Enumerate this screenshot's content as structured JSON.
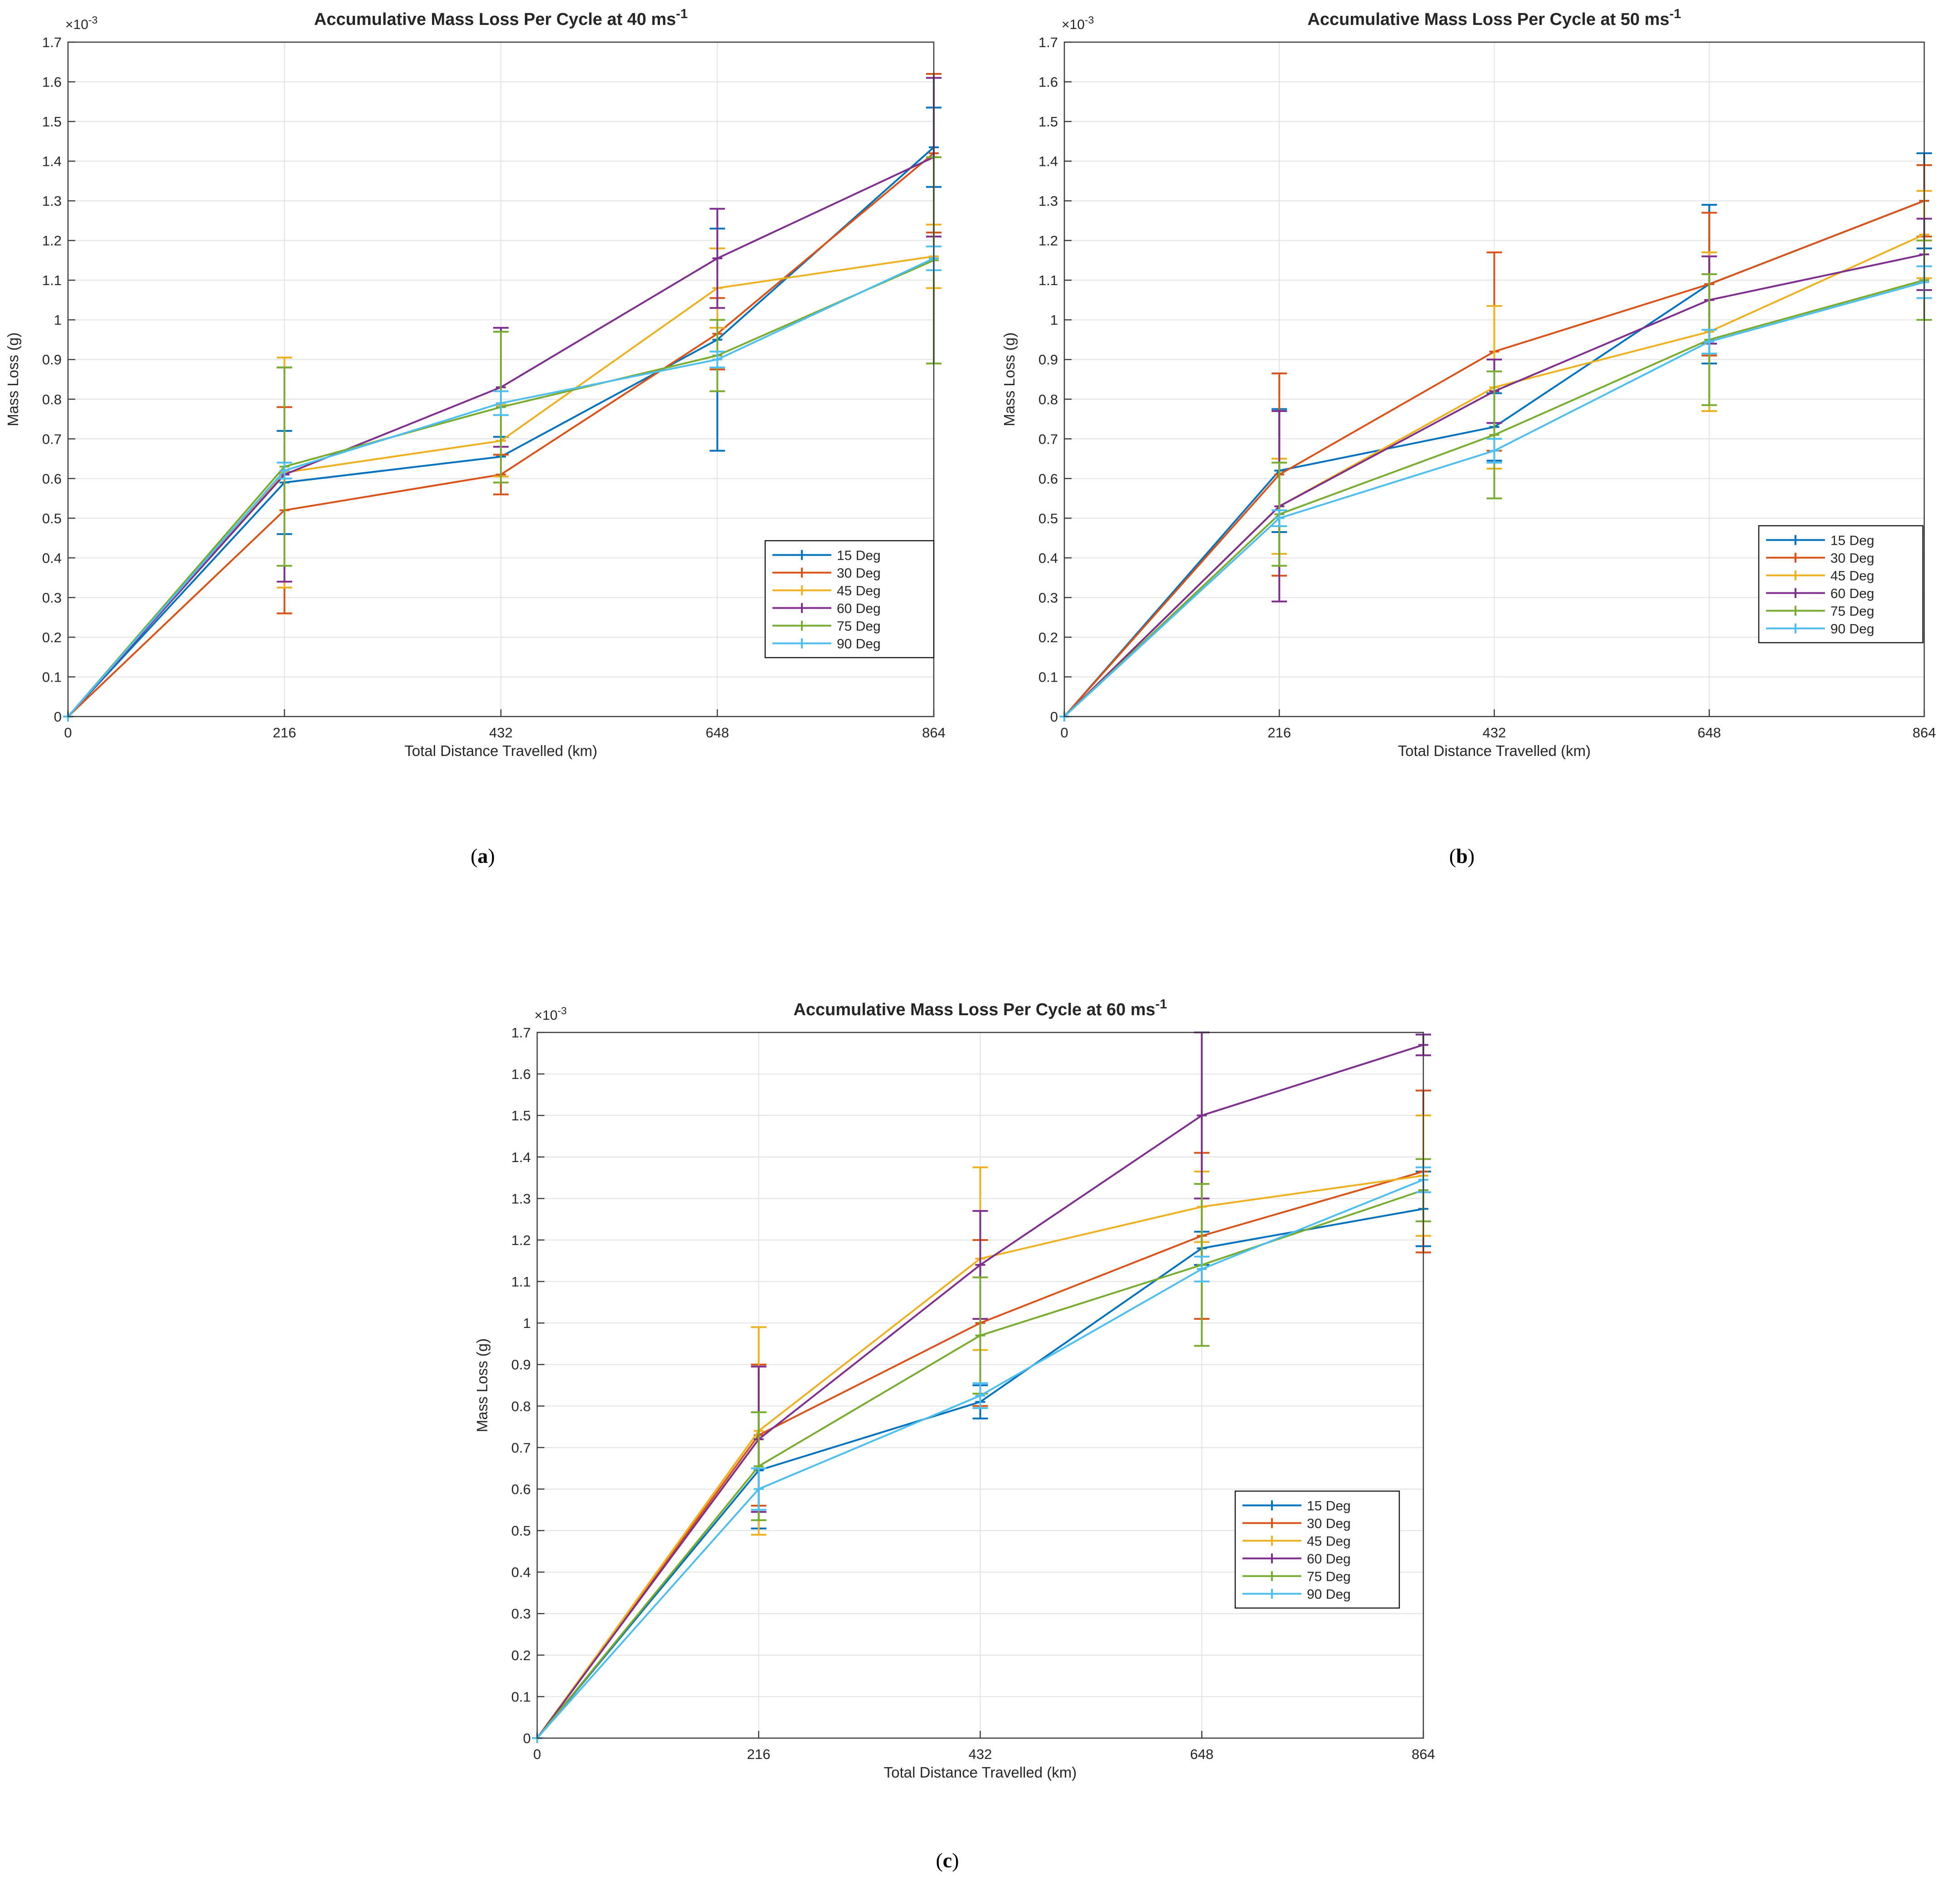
{
  "page": {
    "background": "#ffffff"
  },
  "captions": [
    {
      "open": "(",
      "letter": "a",
      "close": ")"
    },
    {
      "open": "(",
      "letter": "b",
      "close": ")"
    },
    {
      "open": "(",
      "letter": "c",
      "close": ")"
    }
  ],
  "colors": {
    "deg15": "#0072BD",
    "deg30": "#D95319",
    "deg45": "#EDB120",
    "deg60": "#7E2F8E",
    "deg75": "#77AC30",
    "deg90": "#4DBEEE",
    "grid": "#E2E2E2",
    "axis": "#3A3A3A",
    "text": "#262626"
  },
  "chart_data": [
    {
      "type": "line",
      "id": "chart-40ms",
      "title": "Accumulative Mass Loss Per Cycle at 40 ms",
      "title_superscript": "-1",
      "xlabel": "Total Distance Travelled (km)",
      "ylabel": "Mass Loss (g)",
      "y_scale_label": "×10",
      "y_scale_superscript": "-3",
      "unit_note": "y values in units of 1e-3 g",
      "x": [
        0,
        216,
        432,
        648,
        864
      ],
      "x_tick_labels": [
        "0",
        "216",
        "432",
        "648",
        "864"
      ],
      "y_tick_labels": [
        "0",
        "0.1",
        "0.2",
        "0.3",
        "0.4",
        "0.5",
        "0.6",
        "0.7",
        "0.8",
        "0.9",
        "1",
        "1.1",
        "1.2",
        "1.3",
        "1.4",
        "1.5",
        "1.6",
        "1.7"
      ],
      "ylim": [
        0,
        1.7
      ],
      "grid": true,
      "legend_position": "inset lower right",
      "series": [
        {
          "name": "15 Deg",
          "color": "#0072BD",
          "values": [
            0,
            0.59,
            0.655,
            0.95,
            1.435
          ],
          "errors": [
            0,
            0.13,
            0.05,
            0.28,
            0.1
          ]
        },
        {
          "name": "30 Deg",
          "color": "#D95319",
          "values": [
            0,
            0.52,
            0.61,
            0.965,
            1.42
          ],
          "errors": [
            0,
            0.26,
            0.05,
            0.09,
            0.2
          ]
        },
        {
          "name": "45 Deg",
          "color": "#EDB120",
          "values": [
            0,
            0.615,
            0.695,
            1.08,
            1.16
          ],
          "errors": [
            0,
            0.29,
            0.09,
            0.1,
            0.08
          ]
        },
        {
          "name": "60 Deg",
          "color": "#7E2F8E",
          "values": [
            0,
            0.61,
            0.83,
            1.155,
            1.41
          ],
          "errors": [
            0,
            0.27,
            0.15,
            0.125,
            0.2
          ]
        },
        {
          "name": "75 Deg",
          "color": "#77AC30",
          "values": [
            0,
            0.63,
            0.78,
            0.91,
            1.15
          ],
          "errors": [
            0,
            0.25,
            0.19,
            0.09,
            0.26
          ]
        },
        {
          "name": "90 Deg",
          "color": "#4DBEEE",
          "values": [
            0,
            0.62,
            0.79,
            0.9,
            1.155
          ],
          "errors": [
            0,
            0.02,
            0.03,
            0.02,
            0.03
          ]
        }
      ]
    },
    {
      "type": "line",
      "id": "chart-50ms",
      "title": "Accumulative Mass Loss Per Cycle at 50 ms",
      "title_superscript": "-1",
      "xlabel": "Total Distance Travelled (km)",
      "ylabel": "Mass Loss (g)",
      "y_scale_label": "×10",
      "y_scale_superscript": "-3",
      "unit_note": "y values in units of 1e-3 g",
      "x": [
        0,
        216,
        432,
        648,
        864
      ],
      "x_tick_labels": [
        "0",
        "216",
        "432",
        "648",
        "864"
      ],
      "y_tick_labels": [
        "0",
        "0.1",
        "0.2",
        "0.3",
        "0.4",
        "0.5",
        "0.6",
        "0.7",
        "0.8",
        "0.9",
        "1",
        "1.1",
        "1.2",
        "1.3",
        "1.4",
        "1.5",
        "1.6",
        "1.7"
      ],
      "ylim": [
        0,
        1.7
      ],
      "grid": true,
      "legend_position": "inset lower right",
      "series": [
        {
          "name": "15 Deg",
          "color": "#0072BD",
          "values": [
            0,
            0.62,
            0.73,
            1.09,
            1.3
          ],
          "errors": [
            0,
            0.155,
            0.085,
            0.2,
            0.12
          ]
        },
        {
          "name": "30 Deg",
          "color": "#D95319",
          "values": [
            0,
            0.61,
            0.92,
            1.09,
            1.3
          ],
          "errors": [
            0,
            0.255,
            0.25,
            0.18,
            0.09
          ]
        },
        {
          "name": "45 Deg",
          "color": "#EDB120",
          "values": [
            0,
            0.53,
            0.83,
            0.97,
            1.215
          ],
          "errors": [
            0,
            0.12,
            0.205,
            0.2,
            0.11
          ]
        },
        {
          "name": "60 Deg",
          "color": "#7E2F8E",
          "values": [
            0,
            0.53,
            0.82,
            1.05,
            1.165
          ],
          "errors": [
            0,
            0.24,
            0.08,
            0.11,
            0.09
          ]
        },
        {
          "name": "75 Deg",
          "color": "#77AC30",
          "values": [
            0,
            0.51,
            0.71,
            0.95,
            1.1
          ],
          "errors": [
            0,
            0.13,
            0.16,
            0.165,
            0.1
          ]
        },
        {
          "name": "90 Deg",
          "color": "#4DBEEE",
          "values": [
            0,
            0.5,
            0.67,
            0.945,
            1.095
          ],
          "errors": [
            0,
            0.02,
            0.03,
            0.03,
            0.04
          ]
        }
      ]
    },
    {
      "type": "line",
      "id": "chart-60ms",
      "title": "Accumulative Mass Loss Per Cycle at 60 ms",
      "title_superscript": "-1",
      "xlabel": "Total Distance Travelled (km)",
      "ylabel": "Mass Loss (g)",
      "y_scale_label": "×10",
      "y_scale_superscript": "-3",
      "unit_note": "y values in units of 1e-3 g",
      "x": [
        0,
        216,
        432,
        648,
        864
      ],
      "x_tick_labels": [
        "0",
        "216",
        "432",
        "648",
        "864"
      ],
      "y_tick_labels": [
        "0",
        "0.1",
        "0.2",
        "0.3",
        "0.4",
        "0.5",
        "0.6",
        "0.7",
        "0.8",
        "0.9",
        "1",
        "1.1",
        "1.2",
        "1.3",
        "1.4",
        "1.5",
        "1.6",
        "1.7"
      ],
      "ylim": [
        0,
        1.7
      ],
      "grid": true,
      "legend_position": "inset lower right",
      "series": [
        {
          "name": "15 Deg",
          "color": "#0072BD",
          "values": [
            0,
            0.645,
            0.81,
            1.18,
            1.275
          ],
          "errors": [
            0,
            0.14,
            0.04,
            0.04,
            0.09
          ]
        },
        {
          "name": "30 Deg",
          "color": "#D95319",
          "values": [
            0,
            0.73,
            1.0,
            1.21,
            1.365
          ],
          "errors": [
            0,
            0.17,
            0.2,
            0.2,
            0.195
          ]
        },
        {
          "name": "45 Deg",
          "color": "#EDB120",
          "values": [
            0,
            0.74,
            1.155,
            1.28,
            1.355
          ],
          "errors": [
            0,
            0.25,
            0.22,
            0.085,
            0.145
          ]
        },
        {
          "name": "60 Deg",
          "color": "#7E2F8E",
          "values": [
            0,
            0.72,
            1.14,
            1.5,
            1.67
          ],
          "errors": [
            0,
            0.175,
            0.13,
            0.2,
            0.025
          ]
        },
        {
          "name": "75 Deg",
          "color": "#77AC30",
          "values": [
            0,
            0.655,
            0.97,
            1.14,
            1.32
          ],
          "errors": [
            0,
            0.13,
            0.14,
            0.195,
            0.075
          ]
        },
        {
          "name": "90 Deg",
          "color": "#4DBEEE",
          "values": [
            0,
            0.6,
            0.825,
            1.13,
            1.345
          ],
          "errors": [
            0,
            0.05,
            0.03,
            0.03,
            0.03
          ]
        }
      ]
    }
  ]
}
